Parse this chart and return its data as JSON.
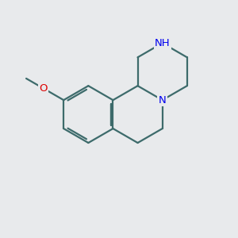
{
  "background_color": "#e8eaec",
  "bond_color": "#3d6b6b",
  "N_color": "#0000ee",
  "O_color": "#dd0000",
  "figsize": [
    3.0,
    3.0
  ],
  "dpi": 100,
  "lw": 1.6,
  "font_size": 9.5,
  "NH_text": "NH",
  "N_text": "N",
  "O_text": "O",
  "methoxy_text": "O"
}
